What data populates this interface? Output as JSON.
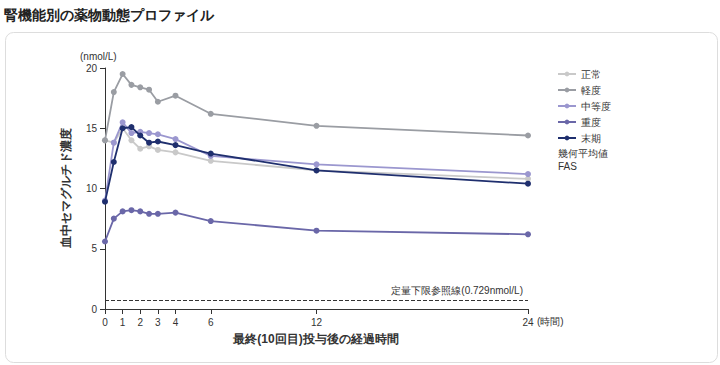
{
  "chart_data": {
    "type": "line",
    "title": "腎機能別の薬物動態プロファイル",
    "x_label": "最終(10回目)投与後の経過時間",
    "x_unit": "(時間)",
    "y_label": "血中セマグルチド濃度",
    "y_unit": "(nmol/L)",
    "x": [
      0,
      0.5,
      1,
      1.5,
      2,
      2.5,
      3,
      4,
      6,
      12,
      24
    ],
    "xlim": [
      0,
      24
    ],
    "xticks": [
      0,
      1,
      2,
      3,
      4,
      6,
      12,
      24
    ],
    "ylim": [
      0,
      20
    ],
    "yticks": [
      0,
      5,
      10,
      15,
      20
    ],
    "grid": false,
    "legend": "right",
    "marker": "circle",
    "series": [
      {
        "name": "正常",
        "color": "#c9c9c9",
        "values": [
          14.0,
          13.8,
          15.0,
          14.0,
          13.3,
          13.5,
          13.2,
          13.0,
          12.3,
          11.5,
          10.8
        ]
      },
      {
        "name": "軽度",
        "color": "#9a9da3",
        "values": [
          14.0,
          18.0,
          19.5,
          18.6,
          18.4,
          18.2,
          17.2,
          17.7,
          16.2,
          15.2,
          14.4
        ]
      },
      {
        "name": "中等度",
        "color": "#9b97cf",
        "values": [
          9.0,
          13.8,
          15.5,
          14.6,
          14.7,
          14.6,
          14.5,
          14.1,
          12.7,
          12.0,
          11.2
        ]
      },
      {
        "name": "重度",
        "color": "#6a67a8",
        "values": [
          5.6,
          7.5,
          8.1,
          8.2,
          8.1,
          7.9,
          7.9,
          8.0,
          7.3,
          6.5,
          6.2
        ]
      },
      {
        "name": "末期",
        "color": "#1f2f6e",
        "values": [
          8.9,
          12.2,
          15.0,
          15.1,
          14.4,
          13.8,
          13.9,
          13.6,
          12.9,
          11.5,
          10.4
        ]
      }
    ],
    "reference_lines": [
      {
        "y": 0.729,
        "label": "定量下限参照線(0.729nmol/L)",
        "line_style": "dashed"
      }
    ],
    "annotations": [
      "幾何平均値",
      "FAS"
    ]
  }
}
